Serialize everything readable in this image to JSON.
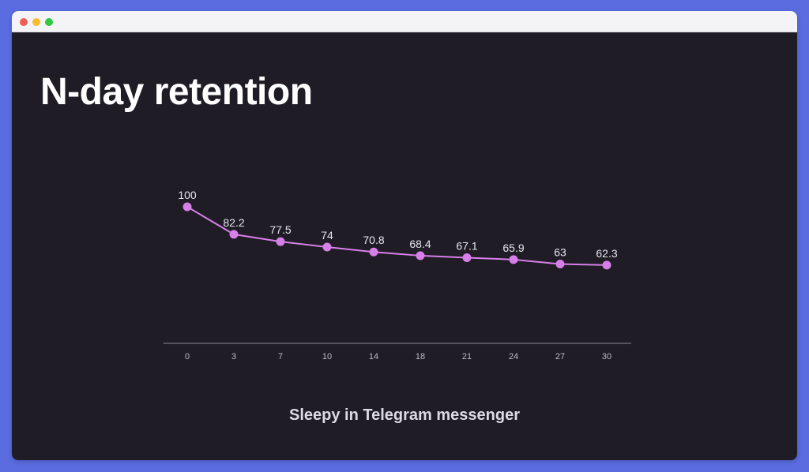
{
  "page": {
    "title": "N-day retention",
    "caption": "Sleepy in Telegram messenger"
  },
  "colors": {
    "background": "#1f1c26",
    "line": "#d77fe8",
    "axis": "#8c8a94",
    "label": "#e6e4ec",
    "tick": "#bcbac4"
  },
  "chart_data": {
    "type": "line",
    "categories": [
      "0",
      "3",
      "7",
      "10",
      "14",
      "18",
      "21",
      "24",
      "27",
      "30"
    ],
    "values": [
      100,
      82.2,
      77.5,
      74,
      70.8,
      68.4,
      67.1,
      65.9,
      63,
      62.3
    ],
    "data_labels": [
      "100",
      "82.2",
      "77.5",
      "74",
      "70.8",
      "68.4",
      "67.1",
      "65.9",
      "63",
      "62.3"
    ],
    "title": "",
    "xlabel": "",
    "ylabel": "",
    "grid": false,
    "legend": "none"
  }
}
